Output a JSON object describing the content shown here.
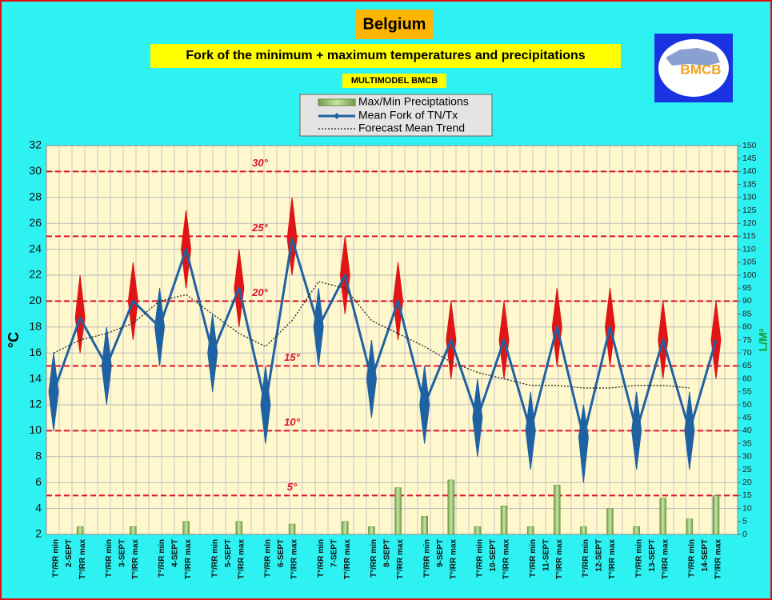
{
  "chart_data": {
    "type": "line",
    "title": "Belgium",
    "subtitle": "Fork of the minimum + maximum temperatures and precipitations",
    "note": "MULTIMODEL BMCB",
    "logo_text": "BMCB",
    "y_label": "°C",
    "y2_label": "L/M²",
    "categories": [
      "T°/RR min",
      "T°/RR max",
      "T°/RR min",
      "T°/RR max",
      "T°/RR min",
      "T°/RR max",
      "T°/RR min",
      "T°/RR max",
      "T°/RR min",
      "T°/RR max",
      "T°/RR min",
      "T°/RR max",
      "T°/RR min",
      "T°/RR max",
      "T°/RR min",
      "T°/RR max",
      "T°/RR min",
      "T°/RR max",
      "T°/RR min",
      "T°/RR max",
      "T°/RR min",
      "T°/RR max",
      "T°/RR min",
      "T°/RR max",
      "T°/RR min",
      "T°/RR max"
    ],
    "day_labels": [
      "2-SEPT",
      "3-SEPT",
      "4-SEPT",
      "5-SEPT",
      "6-SEPT",
      "7-SEPT",
      "8-SEPT",
      "9-SEPT",
      "10-SEPT",
      "11-SEPT",
      "12-SEPT",
      "13-SEPT",
      "14-SEPT"
    ],
    "series": [
      {
        "name": "Max/Min Preciptations",
        "type": "bar",
        "axis": "y2",
        "color": "#8dbb5c",
        "values": [
          0,
          3,
          0,
          3,
          0,
          5,
          0,
          5,
          0,
          4,
          0,
          5,
          3,
          18,
          7,
          21,
          3,
          11,
          3,
          19,
          3,
          10,
          3,
          14,
          6,
          15
        ]
      },
      {
        "name": "Mean Fork of TN/Tx",
        "type": "line",
        "color": "#1f62a3",
        "values": [
          13,
          18.7,
          15,
          20,
          18,
          24,
          16,
          21,
          12,
          24.8,
          18,
          22,
          14,
          20,
          12,
          17,
          11,
          17,
          10,
          18,
          9.5,
          18,
          10,
          17,
          10,
          17
        ]
      },
      {
        "name": "Forecast Mean Trend",
        "type": "line",
        "color": "#222222",
        "dashed": true,
        "values": [
          16,
          17,
          17.5,
          18.3,
          20,
          20.5,
          19,
          17.5,
          16.5,
          18.5,
          21.5,
          21,
          18.5,
          17.5,
          16.5,
          15.3,
          14.5,
          14,
          13.5,
          13.5,
          13.3,
          13.3,
          13.5,
          13.5,
          13.3,
          null
        ]
      }
    ],
    "fork_low": [
      10,
      16,
      12,
      17,
      15,
      21,
      13,
      18,
      9,
      22,
      15,
      19,
      11,
      17,
      9,
      14,
      8,
      14,
      7,
      15,
      6,
      15,
      7,
      14,
      7,
      14
    ],
    "fork_high": [
      16,
      22,
      18,
      23,
      21,
      27,
      19,
      24,
      15,
      28,
      21,
      25,
      17,
      23,
      15,
      20,
      14,
      20,
      13,
      21,
      12,
      21,
      13,
      20,
      13,
      20
    ],
    "fork_min_color": "#1f62a3",
    "fork_max_color": "#e01515",
    "reference_lines": [
      {
        "value": 30,
        "label": "30°"
      },
      {
        "value": 25,
        "label": "25°"
      },
      {
        "value": 20,
        "label": "20°"
      },
      {
        "value": 15,
        "label": "15°"
      },
      {
        "value": 10,
        "label": "10°"
      },
      {
        "value": 5,
        "label": "5°"
      }
    ],
    "ylim": [
      2,
      32
    ],
    "yticks": [
      2,
      4,
      6,
      8,
      10,
      12,
      14,
      16,
      18,
      20,
      22,
      24,
      26,
      28,
      30,
      32
    ],
    "y2lim": [
      0,
      150
    ],
    "y2ticks": [
      0,
      5,
      10,
      15,
      20,
      25,
      30,
      35,
      40,
      45,
      50,
      55,
      60,
      65,
      70,
      75,
      80,
      85,
      90,
      95,
      100,
      105,
      110,
      115,
      120,
      125,
      130,
      135,
      140,
      145,
      150
    ],
    "grid": true
  }
}
